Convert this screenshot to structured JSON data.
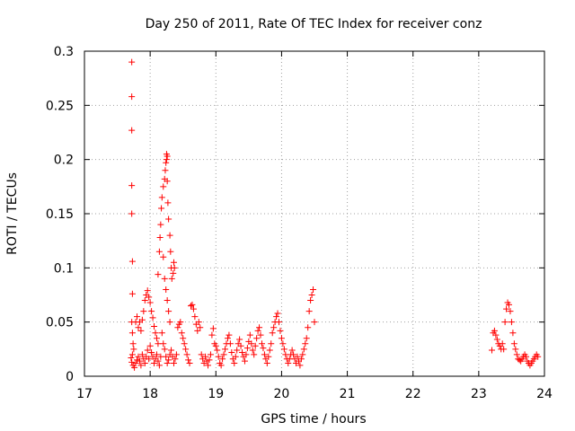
{
  "chart_data": {
    "type": "scatter",
    "title": "Day 250 of 2011, Rate Of TEC Index for receiver conz",
    "xlabel": "GPS time / hours",
    "ylabel": "ROTI / TECUs",
    "xlim": [
      17,
      24
    ],
    "ylim": [
      0,
      0.3
    ],
    "x_ticks": [
      "17",
      "18",
      "19",
      "20",
      "21",
      "22",
      "23",
      "24"
    ],
    "y_ticks": [
      "0",
      "0.05",
      "0.1",
      "0.15",
      "0.2",
      "0.25",
      "0.3"
    ],
    "grid": true,
    "marker": "+",
    "marker_color": "#ff0000",
    "series": [
      {
        "points": [
          [
            17.72,
            0.29
          ],
          [
            17.72,
            0.258
          ],
          [
            17.72,
            0.227
          ],
          [
            17.72,
            0.176
          ],
          [
            17.72,
            0.15
          ],
          [
            17.73,
            0.106
          ],
          [
            17.73,
            0.076
          ],
          [
            17.72,
            0.05
          ],
          [
            17.73,
            0.04
          ],
          [
            17.74,
            0.03
          ],
          [
            17.75,
            0.025
          ],
          [
            17.73,
            0.02
          ],
          [
            17.71,
            0.017
          ],
          [
            17.72,
            0.013
          ],
          [
            17.74,
            0.01
          ],
          [
            17.76,
            0.008
          ],
          [
            17.78,
            0.012
          ],
          [
            17.8,
            0.015
          ],
          [
            17.82,
            0.018
          ],
          [
            17.84,
            0.014
          ],
          [
            17.86,
            0.01
          ],
          [
            17.88,
            0.02
          ],
          [
            17.9,
            0.016
          ],
          [
            17.92,
            0.012
          ],
          [
            17.94,
            0.018
          ],
          [
            17.96,
            0.024
          ],
          [
            17.98,
            0.016
          ],
          [
            17.78,
            0.05
          ],
          [
            17.8,
            0.055
          ],
          [
            17.82,
            0.045
          ],
          [
            17.84,
            0.05
          ],
          [
            17.86,
            0.042
          ],
          [
            17.88,
            0.052
          ],
          [
            17.9,
            0.06
          ],
          [
            17.92,
            0.07
          ],
          [
            17.94,
            0.075
          ],
          [
            17.96,
            0.079
          ],
          [
            17.98,
            0.073
          ],
          [
            18.0,
            0.068
          ],
          [
            18.02,
            0.06
          ],
          [
            18.04,
            0.054
          ],
          [
            18.06,
            0.046
          ],
          [
            18.08,
            0.04
          ],
          [
            18.1,
            0.035
          ],
          [
            18.12,
            0.03
          ],
          [
            18.0,
            0.028
          ],
          [
            18.02,
            0.022
          ],
          [
            18.04,
            0.018
          ],
          [
            18.06,
            0.012
          ],
          [
            18.08,
            0.016
          ],
          [
            18.1,
            0.02
          ],
          [
            18.12,
            0.014
          ],
          [
            18.14,
            0.01
          ],
          [
            18.16,
            0.018
          ],
          [
            18.12,
            0.094
          ],
          [
            18.14,
            0.115
          ],
          [
            18.15,
            0.128
          ],
          [
            18.16,
            0.14
          ],
          [
            18.17,
            0.155
          ],
          [
            18.18,
            0.165
          ],
          [
            18.2,
            0.175
          ],
          [
            18.22,
            0.182
          ],
          [
            18.23,
            0.19
          ],
          [
            18.24,
            0.197
          ],
          [
            18.25,
            0.2
          ],
          [
            18.26,
            0.203
          ],
          [
            18.25,
            0.205
          ],
          [
            18.26,
            0.18
          ],
          [
            18.27,
            0.16
          ],
          [
            18.28,
            0.145
          ],
          [
            18.3,
            0.13
          ],
          [
            18.31,
            0.115
          ],
          [
            18.32,
            0.1
          ],
          [
            18.33,
            0.09
          ],
          [
            18.35,
            0.095
          ],
          [
            18.36,
            0.105
          ],
          [
            18.37,
            0.1
          ],
          [
            18.2,
            0.11
          ],
          [
            18.22,
            0.09
          ],
          [
            18.24,
            0.08
          ],
          [
            18.26,
            0.07
          ],
          [
            18.28,
            0.06
          ],
          [
            18.3,
            0.05
          ],
          [
            18.18,
            0.04
          ],
          [
            18.2,
            0.03
          ],
          [
            18.22,
            0.025
          ],
          [
            18.24,
            0.018
          ],
          [
            18.26,
            0.012
          ],
          [
            18.28,
            0.015
          ],
          [
            18.3,
            0.02
          ],
          [
            18.32,
            0.024
          ],
          [
            18.34,
            0.018
          ],
          [
            18.36,
            0.012
          ],
          [
            18.38,
            0.016
          ],
          [
            18.4,
            0.02
          ],
          [
            18.42,
            0.045
          ],
          [
            18.44,
            0.048
          ],
          [
            18.46,
            0.05
          ],
          [
            18.48,
            0.04
          ],
          [
            18.5,
            0.035
          ],
          [
            18.52,
            0.03
          ],
          [
            18.54,
            0.025
          ],
          [
            18.56,
            0.02
          ],
          [
            18.58,
            0.015
          ],
          [
            18.6,
            0.012
          ],
          [
            18.62,
            0.065
          ],
          [
            18.64,
            0.066
          ],
          [
            18.66,
            0.062
          ],
          [
            18.68,
            0.055
          ],
          [
            18.7,
            0.048
          ],
          [
            18.72,
            0.042
          ],
          [
            18.74,
            0.05
          ],
          [
            18.76,
            0.045
          ],
          [
            18.78,
            0.02
          ],
          [
            18.8,
            0.016
          ],
          [
            18.82,
            0.012
          ],
          [
            18.84,
            0.018
          ],
          [
            18.86,
            0.014
          ],
          [
            18.88,
            0.01
          ],
          [
            18.9,
            0.015
          ],
          [
            18.92,
            0.02
          ],
          [
            18.94,
            0.038
          ],
          [
            18.96,
            0.044
          ],
          [
            18.98,
            0.03
          ],
          [
            19.0,
            0.028
          ],
          [
            19.02,
            0.024
          ],
          [
            19.04,
            0.018
          ],
          [
            19.06,
            0.012
          ],
          [
            19.08,
            0.01
          ],
          [
            19.1,
            0.016
          ],
          [
            19.12,
            0.02
          ],
          [
            19.14,
            0.025
          ],
          [
            19.16,
            0.03
          ],
          [
            19.18,
            0.035
          ],
          [
            19.2,
            0.038
          ],
          [
            19.22,
            0.03
          ],
          [
            19.24,
            0.022
          ],
          [
            19.26,
            0.016
          ],
          [
            19.28,
            0.012
          ],
          [
            19.3,
            0.018
          ],
          [
            19.32,
            0.024
          ],
          [
            19.34,
            0.03
          ],
          [
            19.36,
            0.034
          ],
          [
            19.38,
            0.028
          ],
          [
            19.4,
            0.022
          ],
          [
            19.42,
            0.018
          ],
          [
            19.44,
            0.014
          ],
          [
            19.46,
            0.02
          ],
          [
            19.48,
            0.026
          ],
          [
            19.5,
            0.032
          ],
          [
            19.52,
            0.038
          ],
          [
            19.54,
            0.03
          ],
          [
            19.56,
            0.024
          ],
          [
            19.58,
            0.02
          ],
          [
            19.6,
            0.028
          ],
          [
            19.62,
            0.035
          ],
          [
            19.64,
            0.042
          ],
          [
            19.66,
            0.045
          ],
          [
            19.68,
            0.038
          ],
          [
            19.7,
            0.03
          ],
          [
            19.72,
            0.026
          ],
          [
            19.74,
            0.02
          ],
          [
            19.76,
            0.016
          ],
          [
            19.78,
            0.012
          ],
          [
            19.8,
            0.018
          ],
          [
            19.82,
            0.024
          ],
          [
            19.84,
            0.03
          ],
          [
            19.86,
            0.04
          ],
          [
            19.88,
            0.045
          ],
          [
            19.9,
            0.05
          ],
          [
            19.92,
            0.055
          ],
          [
            19.94,
            0.058
          ],
          [
            19.96,
            0.05
          ],
          [
            19.98,
            0.042
          ],
          [
            20.0,
            0.035
          ],
          [
            20.02,
            0.03
          ],
          [
            20.04,
            0.025
          ],
          [
            20.06,
            0.02
          ],
          [
            20.08,
            0.016
          ],
          [
            20.1,
            0.012
          ],
          [
            20.12,
            0.016
          ],
          [
            20.14,
            0.02
          ],
          [
            20.16,
            0.024
          ],
          [
            20.18,
            0.02
          ],
          [
            20.2,
            0.016
          ],
          [
            20.22,
            0.012
          ],
          [
            20.24,
            0.018
          ],
          [
            20.26,
            0.014
          ],
          [
            20.28,
            0.01
          ],
          [
            20.3,
            0.016
          ],
          [
            20.32,
            0.02
          ],
          [
            20.34,
            0.025
          ],
          [
            20.36,
            0.03
          ],
          [
            20.38,
            0.035
          ],
          [
            20.4,
            0.045
          ],
          [
            20.42,
            0.06
          ],
          [
            20.44,
            0.07
          ],
          [
            20.46,
            0.075
          ],
          [
            20.48,
            0.08
          ],
          [
            20.5,
            0.05
          ],
          [
            23.2,
            0.024
          ],
          [
            23.22,
            0.04
          ],
          [
            23.24,
            0.042
          ],
          [
            23.26,
            0.038
          ],
          [
            23.28,
            0.034
          ],
          [
            23.3,
            0.03
          ],
          [
            23.32,
            0.028
          ],
          [
            23.34,
            0.025
          ],
          [
            23.36,
            0.03
          ],
          [
            23.38,
            0.025
          ],
          [
            23.4,
            0.05
          ],
          [
            23.42,
            0.062
          ],
          [
            23.44,
            0.068
          ],
          [
            23.46,
            0.066
          ],
          [
            23.48,
            0.06
          ],
          [
            23.5,
            0.05
          ],
          [
            23.52,
            0.04
          ],
          [
            23.54,
            0.03
          ],
          [
            23.56,
            0.025
          ],
          [
            23.58,
            0.02
          ],
          [
            23.6,
            0.016
          ],
          [
            23.62,
            0.015
          ],
          [
            23.64,
            0.014
          ],
          [
            23.66,
            0.016
          ],
          [
            23.68,
            0.018
          ],
          [
            23.7,
            0.02
          ],
          [
            23.72,
            0.018
          ],
          [
            23.74,
            0.014
          ],
          [
            23.76,
            0.012
          ],
          [
            23.78,
            0.01
          ],
          [
            23.8,
            0.012
          ],
          [
            23.82,
            0.014
          ],
          [
            23.84,
            0.016
          ],
          [
            23.86,
            0.018
          ],
          [
            23.88,
            0.02
          ],
          [
            23.9,
            0.018
          ]
        ]
      }
    ]
  }
}
